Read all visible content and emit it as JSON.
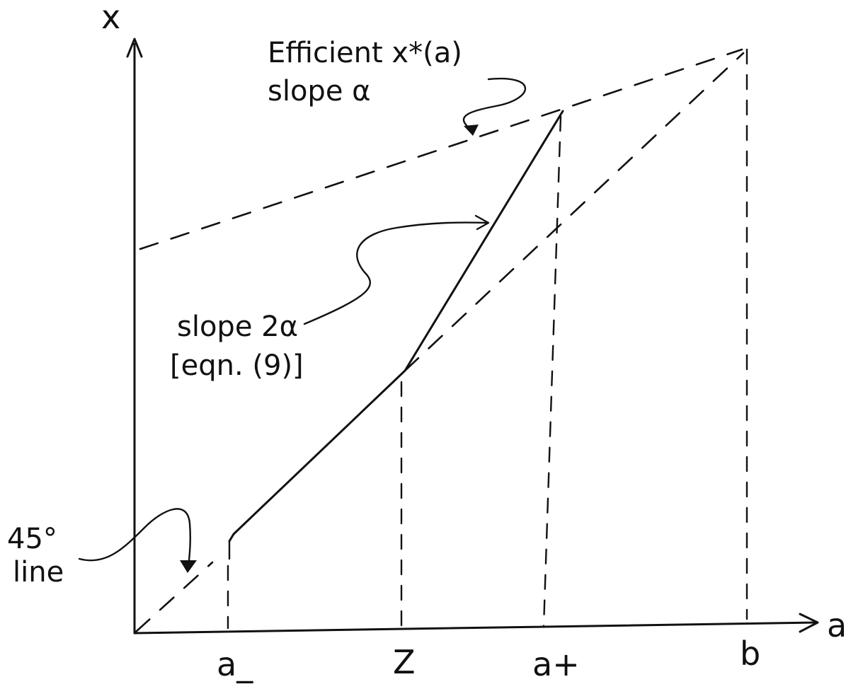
{
  "axes": {
    "x_axis_label": "a",
    "y_axis_label": "x",
    "ticks": [
      "a_",
      "Z",
      "a+",
      "b"
    ]
  },
  "annotations": {
    "efficient_line1": "Efficient x*(a)",
    "efficient_line2": "slope α",
    "slope_line1": "slope 2α",
    "slope_line2": "[eqn. (9)]",
    "line45_line1": "45°",
    "line45_line2": "line"
  }
}
